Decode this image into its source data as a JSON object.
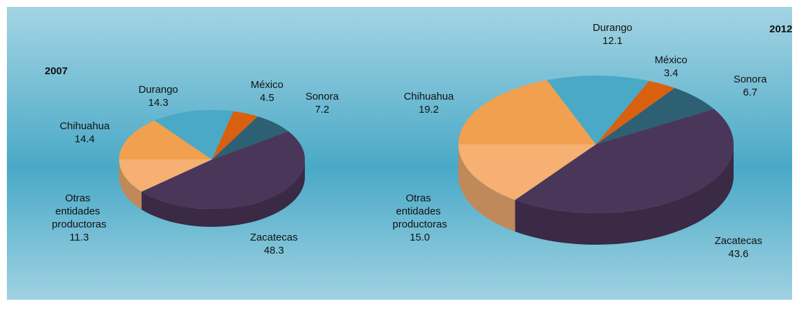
{
  "chart_data": [
    {
      "type": "pie",
      "title": "2007",
      "categories": [
        "Chihuahua",
        "Durango",
        "México",
        "Sonora",
        "Zacatecas",
        "Otras entidades productoras"
      ],
      "values": [
        14.4,
        14.3,
        4.5,
        7.2,
        48.3,
        11.3
      ],
      "colors": [
        "#f0a04e",
        "#4aa9c6",
        "#d8600e",
        "#2e6074",
        "#4a3659",
        "#f5b072"
      ]
    },
    {
      "type": "pie",
      "title": "2012",
      "categories": [
        "Chihuahua",
        "Durango",
        "México",
        "Sonora",
        "Zacatecas",
        "Otras entidades productoras"
      ],
      "values": [
        19.2,
        12.1,
        3.4,
        6.7,
        43.6,
        15.0
      ],
      "value_labels": [
        "19.2",
        "12.1",
        "3.4",
        "6.7",
        "43.6",
        "15.0"
      ],
      "colors": [
        "#f0a04e",
        "#4aa9c6",
        "#d8600e",
        "#2e6074",
        "#4a3659",
        "#f5b072"
      ]
    }
  ]
}
